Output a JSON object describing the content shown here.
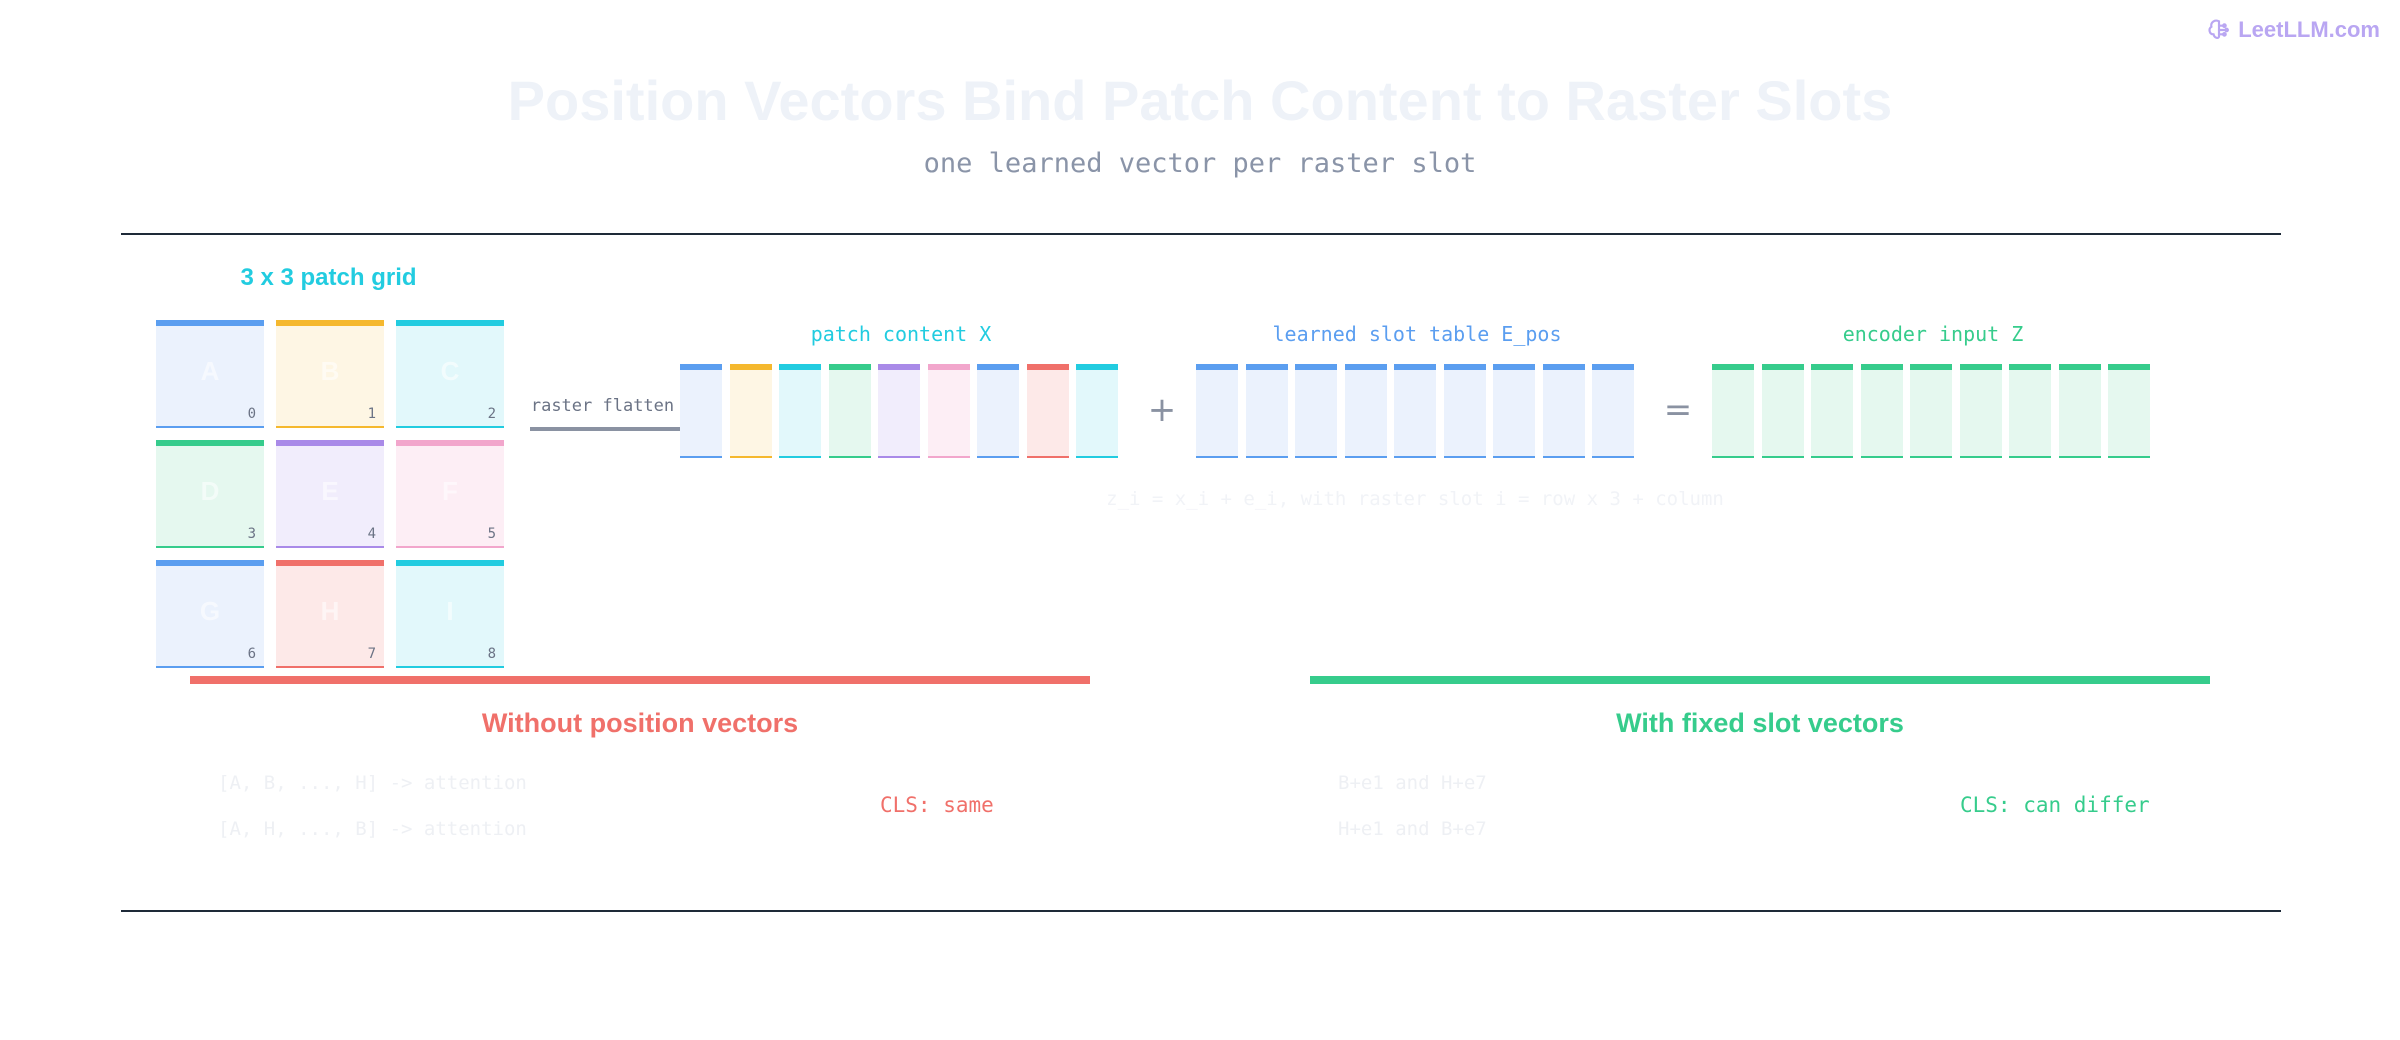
{
  "brand": {
    "name": "LeetLLM.com",
    "icon": "brain-icon",
    "color": "#b9a6f2"
  },
  "header": {
    "title": "Position Vectors Bind Patch Content to Raster Slots",
    "subtitle": "one learned vector per raster slot"
  },
  "grid": {
    "title": "3 x 3 patch grid",
    "cells": [
      {
        "letter": "A",
        "index": "0",
        "color": "#5b9ef0",
        "fill": "#ebf2fd"
      },
      {
        "letter": "B",
        "index": "1",
        "color": "#f5b82e",
        "fill": "#fef6e4"
      },
      {
        "letter": "C",
        "index": "2",
        "color": "#22cce0",
        "fill": "#e2f8fb"
      },
      {
        "letter": "D",
        "index": "3",
        "color": "#36cc8c",
        "fill": "#e5f8ef"
      },
      {
        "letter": "E",
        "index": "4",
        "color": "#a98ae8",
        "fill": "#f1edfc"
      },
      {
        "letter": "F",
        "index": "5",
        "color": "#f2a6cc",
        "fill": "#fdeef5"
      },
      {
        "letter": "G",
        "index": "6",
        "color": "#5b9ef0",
        "fill": "#ebf2fd"
      },
      {
        "letter": "H",
        "index": "7",
        "color": "#f0706a",
        "fill": "#fde9e8"
      },
      {
        "letter": "I",
        "index": "8",
        "color": "#22cce0",
        "fill": "#e2f8fb"
      }
    ]
  },
  "flatten": {
    "label": "raster flatten"
  },
  "sequences": {
    "content": {
      "label": "patch content X",
      "color": "#22cce0",
      "tokens": [
        {
          "color": "#5b9ef0",
          "fill": "#ebf2fd"
        },
        {
          "color": "#f5b82e",
          "fill": "#fef6e4"
        },
        {
          "color": "#22cce0",
          "fill": "#e2f8fb"
        },
        {
          "color": "#36cc8c",
          "fill": "#e5f8ef"
        },
        {
          "color": "#a98ae8",
          "fill": "#f1edfc"
        },
        {
          "color": "#f2a6cc",
          "fill": "#fdeef5"
        },
        {
          "color": "#5b9ef0",
          "fill": "#ebf2fd"
        },
        {
          "color": "#f0706a",
          "fill": "#fde9e8"
        },
        {
          "color": "#22cce0",
          "fill": "#e2f8fb"
        }
      ]
    },
    "plus": "+",
    "positions": {
      "label": "learned slot table E_pos",
      "color": "#5b9ef0",
      "fill": "#ebf2fd",
      "count": 9
    },
    "equals": "=",
    "encoder": {
      "label": "encoder input Z",
      "color": "#36cc8c",
      "fill": "#e5f8ef",
      "count": 9
    }
  },
  "formula": "z_i = x_i + e_i, with raster slot i = row x 3 + column",
  "panels": {
    "without": {
      "title": "Without position vectors",
      "color": "#f0706a",
      "lines": [
        "[A, B, ..., H] -> attention",
        "[A, H, ..., B] -> attention"
      ],
      "cls": "CLS: same"
    },
    "with": {
      "title": "With fixed slot vectors",
      "color": "#36cc8c",
      "lines": [
        "B+e1 and H+e7",
        "H+e1 and B+e7"
      ],
      "cls": "CLS: can differ"
    }
  }
}
